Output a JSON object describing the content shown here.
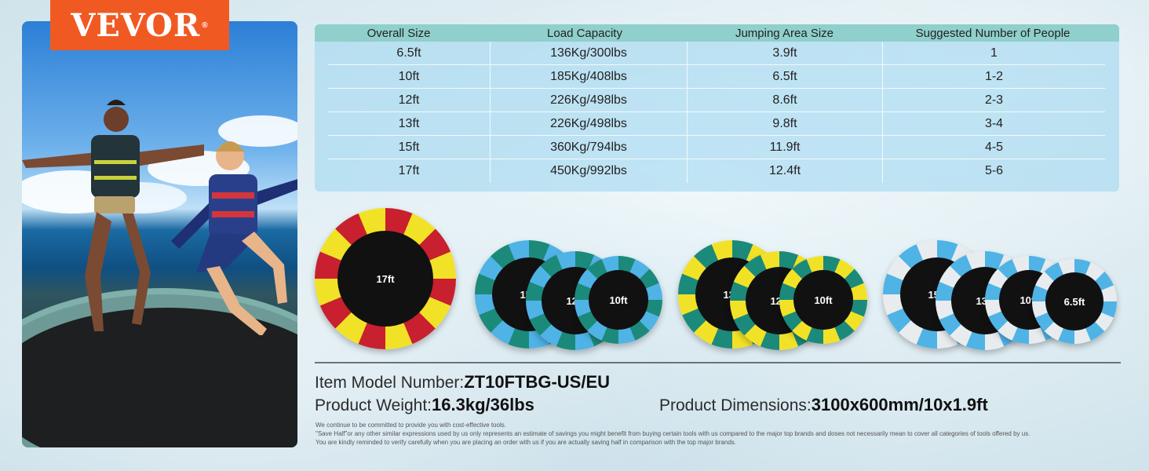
{
  "brand": {
    "logo_text": "VEVOR",
    "registered_mark": "®",
    "color": "#f05a22"
  },
  "table": {
    "headers": [
      "Overall Size",
      "Load Capacity",
      "Jumping Area Size",
      "Suggested Number of People"
    ],
    "rows": [
      [
        "6.5ft",
        "136Kg/300lbs",
        "3.9ft",
        "1"
      ],
      [
        "10ft",
        "185Kg/408lbs",
        "6.5ft",
        "1-2"
      ],
      [
        "12ft",
        "226Kg/498lbs",
        "8.6ft",
        "2-3"
      ],
      [
        "13ft",
        "226Kg/498lbs",
        "9.8ft",
        "3-4"
      ],
      [
        "15ft",
        "360Kg/794lbs",
        "11.9ft",
        "4-5"
      ],
      [
        "17ft",
        "450Kg/992lbs",
        "12.4ft",
        "5-6"
      ]
    ]
  },
  "products": {
    "group_red_yellow": {
      "labels": [
        "17ft"
      ],
      "colors": [
        "#c8202e",
        "#f2e227"
      ]
    },
    "group_green_blue": {
      "labels": [
        "15ft",
        "12ft",
        "10ft"
      ],
      "colors": [
        "#1c8a7a",
        "#4fb3e6"
      ]
    },
    "group_green_yellow": {
      "labels": [
        "13ft",
        "12ft",
        "10ft"
      ],
      "colors": [
        "#1c8a7a",
        "#f2e227"
      ]
    },
    "group_blue_white": {
      "labels": [
        "15ft",
        "13ft",
        "10ft",
        "6.5ft"
      ],
      "colors": [
        "#4fb3e6",
        "#e8ecef"
      ]
    }
  },
  "specs": {
    "model_label": "Item Model Number:",
    "model_value": "ZT10FTBG-US/EU",
    "weight_label": "Product Weight:",
    "weight_value": "16.3kg/36lbs",
    "dimensions_label": "Product Dimensions:",
    "dimensions_value": "3100x600mm/10x1.9ft"
  },
  "disclaimer": [
    "We continue to be committed to provide you with cost-effective tools.",
    "\"Save Half\"or any other similar expressions used by us only represents an estimate of savings you might benefit from buying certain tools with us compared to the major top brands and doses not necessarily mean to cover all categories of tools offered by us.",
    "You are kindly reminded to verify carefully when you are placing an order with us if you are actually saving half in comparison with the top major brands."
  ]
}
